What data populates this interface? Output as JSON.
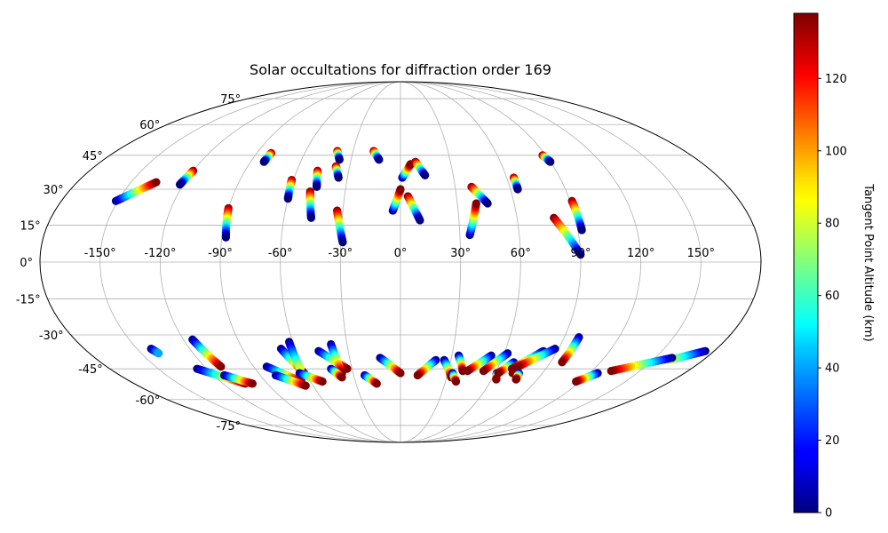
{
  "chart_data": {
    "type": "scatter",
    "projection": "mollweide",
    "title": "Solar occultations for diffraction order 169",
    "lon_ticks": [
      -150,
      -120,
      -90,
      -60,
      -30,
      0,
      30,
      60,
      90,
      120,
      150
    ],
    "lon_tick_labels": [
      "-150°",
      "-120°",
      "-90°",
      "-60°",
      "-30°",
      "0°",
      "30°",
      "60°",
      "90°",
      "120°",
      "150°"
    ],
    "lat_ticks": [
      75,
      60,
      45,
      30,
      15,
      0,
      -15,
      -30,
      -45,
      -60,
      -75
    ],
    "lat_tick_labels": [
      "75°",
      "60°",
      "45°",
      "30°",
      "15°",
      "0°",
      "-15°",
      "-30°",
      "-45°",
      "-60°",
      "-75°"
    ],
    "grid": true,
    "colorbar": {
      "label": "Tangent Point Altitude (km)",
      "colormap": "jet",
      "min": 0,
      "max": 138,
      "ticks": [
        0,
        20,
        40,
        60,
        80,
        100,
        120
      ]
    },
    "tracks": [
      {
        "lon": [
          -151,
          -136
        ],
        "lat": [
          25,
          33
        ],
        "alt": [
          0,
          138
        ]
      },
      {
        "lon": [
          -120,
          -122
        ],
        "lat": [
          38,
          32
        ],
        "alt": [
          138,
          0
        ]
      },
      {
        "lon": [
          -81,
          -82
        ],
        "lat": [
          46,
          42
        ],
        "alt": [
          138,
          0
        ]
      },
      {
        "lon": [
          -90,
          -88
        ],
        "lat": [
          22,
          10
        ],
        "alt": [
          138,
          0
        ]
      },
      {
        "lon": [
          -61,
          -60
        ],
        "lat": [
          34,
          26
        ],
        "alt": [
          138,
          0
        ]
      },
      {
        "lon": [
          -48,
          -46
        ],
        "lat": [
          38,
          31
        ],
        "alt": [
          138,
          0
        ]
      },
      {
        "lon": [
          -49,
          -46
        ],
        "lat": [
          29,
          18
        ],
        "alt": [
          138,
          0
        ]
      },
      {
        "lon": [
          -40,
          -37
        ],
        "lat": [
          47,
          43
        ],
        "alt": [
          138,
          0
        ]
      },
      {
        "lon": [
          -38,
          -35
        ],
        "lat": [
          40,
          35
        ],
        "alt": [
          138,
          0
        ]
      },
      {
        "lon": [
          -33,
          -29
        ],
        "lat": [
          21,
          8
        ],
        "alt": [
          138,
          0
        ]
      },
      {
        "lon": [
          -17,
          -13
        ],
        "lat": [
          47,
          43
        ],
        "alt": [
          138,
          0
        ]
      },
      {
        "lon": [
          -4,
          0
        ],
        "lat": [
          21,
          30
        ],
        "alt": [
          0,
          138
        ]
      },
      {
        "lon": [
          1,
          6
        ],
        "lat": [
          35,
          41
        ],
        "alt": [
          0,
          138
        ]
      },
      {
        "lon": [
          9,
          14
        ],
        "lat": [
          42,
          36
        ],
        "alt": [
          138,
          0
        ]
      },
      {
        "lon": [
          4,
          10
        ],
        "lat": [
          27,
          17
        ],
        "alt": [
          138,
          0
        ]
      },
      {
        "lon": [
          35,
          40
        ],
        "lat": [
          11,
          24
        ],
        "alt": [
          0,
          138
        ]
      },
      {
        "lon": [
          39,
          46
        ],
        "lat": [
          31,
          24
        ],
        "alt": [
          138,
          0
        ]
      },
      {
        "lon": [
          64,
          64
        ],
        "lat": [
          35,
          30
        ],
        "alt": [
          138,
          0
        ]
      },
      {
        "lon": [
          88,
          90
        ],
        "lat": [
          45,
          42
        ],
        "alt": [
          138,
          0
        ]
      },
      {
        "lon": [
          79,
          90
        ],
        "lat": [
          18,
          3
        ],
        "alt": [
          138,
          0
        ]
      },
      {
        "lon": [
          91,
          92
        ],
        "lat": [
          25,
          13
        ],
        "alt": [
          138,
          0
        ]
      },
      {
        "lon": [
          -142,
          -140
        ],
        "lat": [
          -36,
          -38
        ],
        "alt": [
          0,
          40
        ]
      },
      {
        "lon": [
          -115,
          -110
        ],
        "lat": [
          -32,
          -44
        ],
        "alt": [
          0,
          138
        ]
      },
      {
        "lon": [
          -126,
          -105
        ],
        "lat": [
          -45,
          -52
        ],
        "alt": [
          0,
          138
        ]
      },
      {
        "lon": [
          -113,
          -100
        ],
        "lat": [
          -48,
          -52
        ],
        "alt": [
          0,
          138
        ]
      },
      {
        "lon": [
          -82,
          -66
        ],
        "lat": [
          -44,
          -51
        ],
        "alt": [
          0,
          138
        ]
      },
      {
        "lon": [
          -80,
          -65
        ],
        "lat": [
          -48,
          -53
        ],
        "alt": [
          0,
          138
        ]
      },
      {
        "lon": [
          -68,
          -61
        ],
        "lat": [
          -36,
          -47
        ],
        "alt": [
          0,
          138
        ]
      },
      {
        "lon": [
          -62,
          -62
        ],
        "lat": [
          -33,
          -45
        ],
        "alt": [
          0,
          80
        ]
      },
      {
        "lon": [
          -64,
          -52
        ],
        "lat": [
          -47,
          -51
        ],
        "alt": [
          0,
          138
        ]
      },
      {
        "lon": [
          -47,
          -33
        ],
        "lat": [
          -37,
          -45
        ],
        "alt": [
          0,
          138
        ]
      },
      {
        "lon": [
          -39,
          -37
        ],
        "lat": [
          -34,
          -47
        ],
        "alt": [
          0,
          138
        ]
      },
      {
        "lon": [
          -43,
          -38
        ],
        "lat": [
          -45,
          -49
        ],
        "alt": [
          0,
          138
        ]
      },
      {
        "lon": [
          -23,
          -16
        ],
        "lat": [
          -48,
          -52
        ],
        "alt": [
          0,
          138
        ]
      },
      {
        "lon": [
          -12,
          0
        ],
        "lat": [
          -40,
          -47
        ],
        "alt": [
          0,
          138
        ]
      },
      {
        "lon": [
          21,
          11
        ],
        "lat": [
          -41,
          -48
        ],
        "alt": [
          0,
          138
        ]
      },
      {
        "lon": [
          26,
          33
        ],
        "lat": [
          -41,
          -49
        ],
        "alt": [
          0,
          138
        ]
      },
      {
        "lon": [
          34,
          39
        ],
        "lat": [
          -39,
          -46
        ],
        "alt": [
          0,
          138
        ]
      },
      {
        "lon": [
          33,
          37
        ],
        "lat": [
          -47,
          -51
        ],
        "alt": [
          0,
          138
        ]
      },
      {
        "lon": [
          53,
          42
        ],
        "lat": [
          -39,
          -46
        ],
        "alt": [
          0,
          138
        ]
      },
      {
        "lon": [
          62,
          52
        ],
        "lat": [
          -38,
          -46
        ],
        "alt": [
          0,
          138
        ]
      },
      {
        "lon": [
          61,
          63
        ],
        "lat": [
          -47,
          -50
        ],
        "alt": [
          0,
          138
        ]
      },
      {
        "lon": [
          68,
          62
        ],
        "lat": [
          -42,
          -47
        ],
        "alt": [
          0,
          138
        ]
      },
      {
        "lon": [
          74,
          71
        ],
        "lat": [
          -42,
          -47
        ],
        "alt": [
          0,
          138
        ]
      },
      {
        "lon": [
          82,
          69
        ],
        "lat": [
          -37,
          -45
        ],
        "alt": [
          0,
          138
        ]
      },
      {
        "lon": [
          88,
          72
        ],
        "lat": [
          -36,
          -44
        ],
        "alt": [
          0,
          138
        ]
      },
      {
        "lon": [
          75,
          76
        ],
        "lat": [
          -47,
          -50
        ],
        "alt": [
          0,
          138
        ]
      },
      {
        "lon": [
          98,
          97
        ],
        "lat": [
          -31,
          -42
        ],
        "alt": [
          0,
          138
        ]
      },
      {
        "lon": [
          125,
          117
        ],
        "lat": [
          -47,
          -51
        ],
        "alt": [
          0,
          138
        ]
      },
      {
        "lon": [
          175,
          160
        ],
        "lat": [
          -37,
          -41
        ],
        "alt": [
          0,
          80
        ]
      },
      {
        "lon": [
          160,
          132
        ],
        "lat": [
          -40,
          -46
        ],
        "alt": [
          0,
          138
        ]
      }
    ]
  }
}
